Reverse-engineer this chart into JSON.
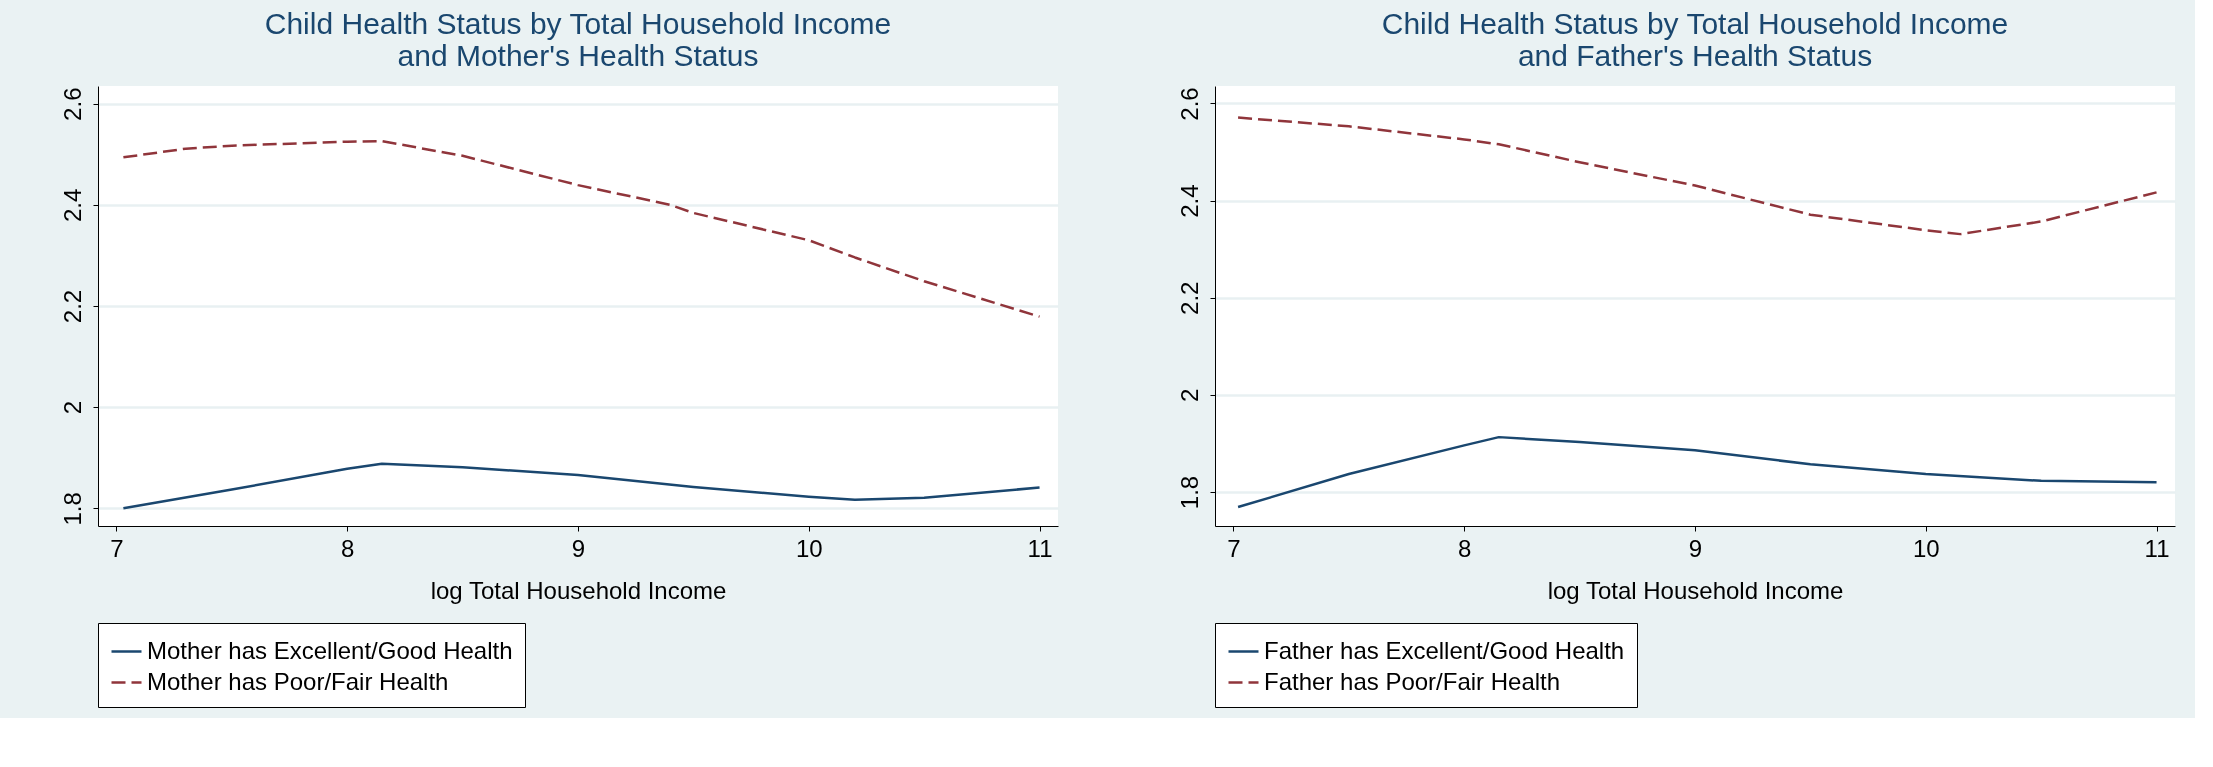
{
  "chart_data": [
    {
      "type": "line",
      "title": [
        "Child Health Status by Total Household Income",
        "and Mother's Health Status"
      ],
      "xlabel": "log Total Household Income",
      "xlim": [
        6.92,
        11.08
      ],
      "xticks": [
        7,
        8,
        9,
        10,
        11
      ],
      "ylim": [
        1.765,
        2.635
      ],
      "yticks": [
        1.8,
        2,
        2.2,
        2.4,
        2.6
      ],
      "grid": "y",
      "legend": "bottom",
      "series": [
        {
          "name": "Mother has Excellent/Good Health",
          "color": "#1a476f",
          "line_style": "solid",
          "x": [
            7.03,
            7.5,
            8,
            8.15,
            8.5,
            9,
            9.5,
            10,
            10.2,
            10.5,
            11
          ],
          "values": [
            1.8,
            1.837,
            1.878,
            1.888,
            1.881,
            1.866,
            1.842,
            1.823,
            1.817,
            1.821,
            1.841
          ]
        },
        {
          "name": "Mother has Poor/Fair Health",
          "color": "#90353b",
          "line_style": "dashed",
          "x": [
            7.03,
            7.3,
            7.5,
            8,
            8.15,
            8.5,
            9,
            9.4,
            9.5,
            10,
            10.2,
            10.5,
            11
          ],
          "values": [
            2.494,
            2.511,
            2.517,
            2.525,
            2.526,
            2.497,
            2.439,
            2.4,
            2.384,
            2.33,
            2.296,
            2.249,
            2.179
          ]
        }
      ]
    },
    {
      "type": "line",
      "title": [
        "Child Health Status by Total Household Income",
        "and Father's Health Status"
      ],
      "xlabel": "log Total Household Income",
      "xlim": [
        6.92,
        11.08
      ],
      "xticks": [
        7,
        8,
        9,
        10,
        11
      ],
      "ylim": [
        1.73,
        2.636
      ],
      "yticks": [
        1.8,
        2,
        2.2,
        2.4,
        2.6
      ],
      "grid": "y",
      "legend": "bottom",
      "series": [
        {
          "name": "Father has Excellent/Good Health",
          "color": "#1a476f",
          "line_style": "solid",
          "x": [
            7.02,
            7.5,
            8,
            8.15,
            8.5,
            9,
            9.5,
            10,
            10.5,
            11
          ],
          "values": [
            1.769,
            1.837,
            1.896,
            1.913,
            1.903,
            1.886,
            1.857,
            1.837,
            1.823,
            1.82
          ]
        },
        {
          "name": "Father has Poor/Fair Health",
          "color": "#90353b",
          "line_style": "dashed",
          "x": [
            7.02,
            7.5,
            8,
            8.15,
            8.5,
            9,
            9.5,
            10,
            10.15,
            10.5,
            11
          ],
          "values": [
            2.571,
            2.553,
            2.526,
            2.516,
            2.479,
            2.431,
            2.371,
            2.339,
            2.331,
            2.357,
            2.417
          ]
        }
      ]
    }
  ]
}
